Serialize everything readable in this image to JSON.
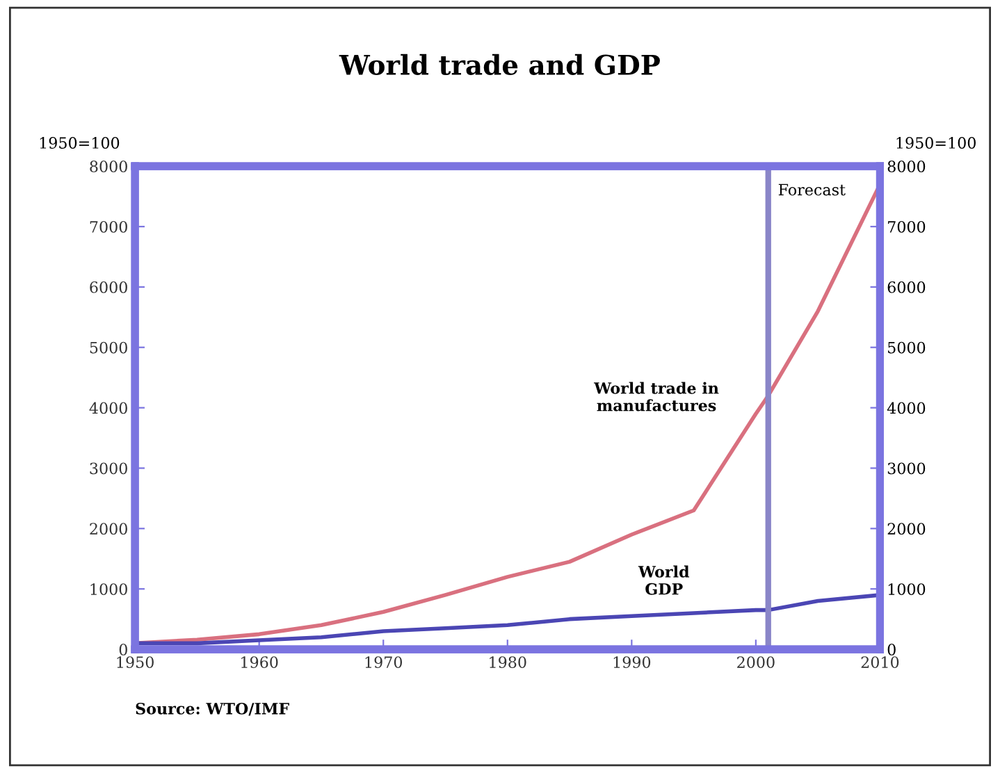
{
  "chart_data": {
    "type": "line",
    "title": "World trade and GDP",
    "ylabel": "1950=100",
    "y2label": "1950=100",
    "x": [
      1950,
      1955,
      1960,
      1965,
      1970,
      1975,
      1980,
      1985,
      1990,
      1995,
      2000,
      2001,
      2005,
      2010
    ],
    "series": [
      {
        "color": "#d9707f",
        "values": [
          100,
          160,
          250,
          400,
          620,
          900,
          1200,
          1450,
          1900,
          2300,
          3900,
          4200,
          5600,
          7700
        ]
      },
      {
        "color": "#4b46b4",
        "values": [
          100,
          100,
          150,
          200,
          300,
          350,
          400,
          500,
          550,
          600,
          650,
          650,
          800,
          900
        ]
      }
    ],
    "xlim": [
      1950,
      2010
    ],
    "xticks": [
      1950,
      1960,
      1970,
      1980,
      1990,
      2000,
      2010
    ],
    "ylim": [
      0,
      8000
    ],
    "yticks": [
      0,
      1000,
      2000,
      3000,
      4000,
      5000,
      6000,
      7000,
      8000
    ],
    "y2lim": [
      0,
      8000
    ],
    "y2ticks": [
      0,
      1000,
      2000,
      3000,
      4000,
      5000,
      6000,
      7000,
      8000
    ],
    "ref_lines": [
      {
        "axis": "x",
        "value": 2001,
        "label": "Forecast",
        "color": "#8a86c8"
      }
    ],
    "annotations": [
      "World trade in\nmanufactures",
      "World\nGDP",
      "Source: WTO/IMF"
    ],
    "grid": false
  }
}
